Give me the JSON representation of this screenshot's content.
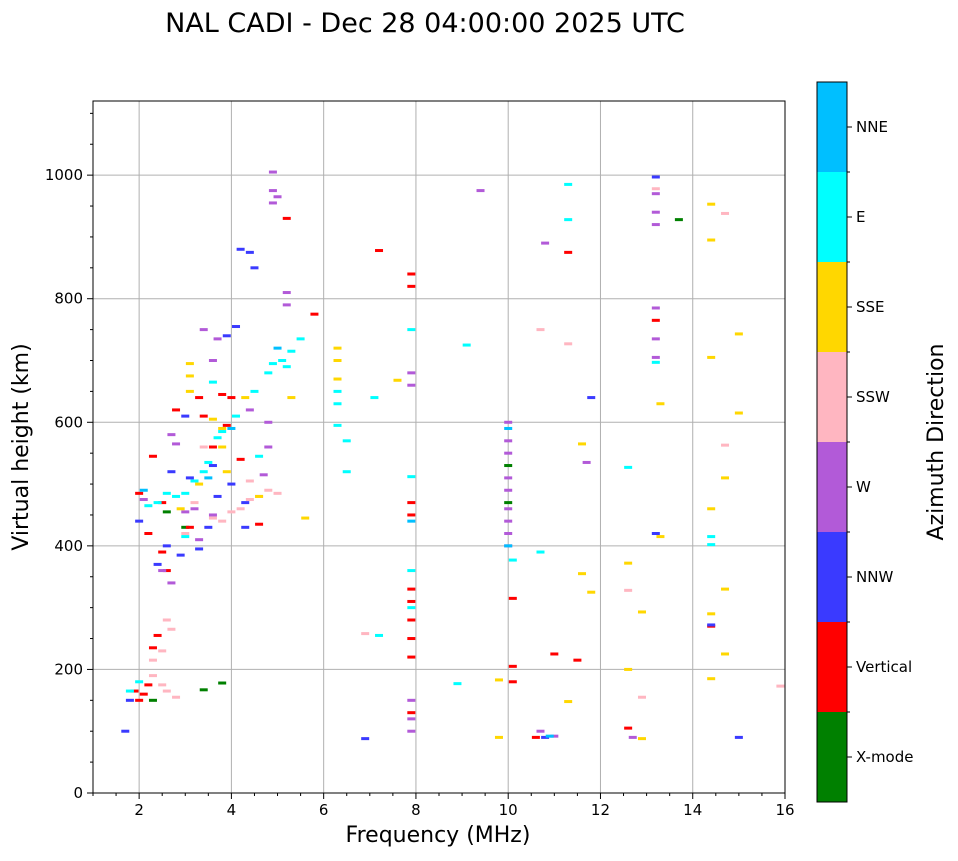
{
  "chart_data": {
    "type": "scatter",
    "title": "NAL CADI - Dec 28 04:00:00 2025 UTC",
    "xlabel": "Frequency (MHz)",
    "ylabel": "Virtual height (km)",
    "xlim": [
      1,
      16
    ],
    "ylim": [
      0,
      1120
    ],
    "xticks": [
      2,
      4,
      6,
      8,
      10,
      12,
      14,
      16
    ],
    "yticks": [
      0,
      200,
      400,
      600,
      800,
      1000
    ],
    "xtick_labels": [
      "2",
      "4",
      "6",
      "8",
      "10",
      "12",
      "14",
      "16"
    ],
    "ytick_labels": [
      "0",
      "200",
      "400",
      "600",
      "800",
      "1000"
    ],
    "grid": true,
    "colorbar": {
      "label": "Azimuth Direction",
      "categories": [
        "X-mode",
        "Vertical",
        "NNW",
        "W",
        "SSW",
        "SSE",
        "E",
        "NNE"
      ],
      "colors": [
        "#008000",
        "#ff0000",
        "#3a3aff",
        "#b25ad8",
        "#ffb6c1",
        "#ffd700",
        "#00ffff",
        "#00bfff"
      ]
    },
    "series": [
      {
        "name": "X-mode",
        "color": "#008000",
        "points": [
          [
            3.4,
            167
          ],
          [
            3.8,
            178
          ],
          [
            13.7,
            928
          ],
          [
            10.0,
            470
          ],
          [
            10.0,
            530
          ],
          [
            2.6,
            455
          ],
          [
            3.0,
            430
          ],
          [
            2.3,
            150
          ]
        ]
      },
      {
        "name": "Vertical",
        "color": "#ff0000",
        "points": [
          [
            2.0,
            150
          ],
          [
            2.1,
            160
          ],
          [
            2.2,
            175
          ],
          [
            2.3,
            235
          ],
          [
            2.4,
            255
          ],
          [
            2.0,
            485
          ],
          [
            2.2,
            420
          ],
          [
            2.3,
            545
          ],
          [
            2.5,
            390
          ],
          [
            2.8,
            620
          ],
          [
            3.1,
            430
          ],
          [
            3.4,
            610
          ],
          [
            3.6,
            560
          ],
          [
            3.8,
            645
          ],
          [
            4.0,
            640
          ],
          [
            4.2,
            540
          ],
          [
            4.6,
            435
          ],
          [
            5.8,
            775
          ],
          [
            5.2,
            930
          ],
          [
            7.2,
            878
          ],
          [
            7.9,
            820
          ],
          [
            7.9,
            840
          ],
          [
            7.9,
            330
          ],
          [
            7.9,
            310
          ],
          [
            7.9,
            280
          ],
          [
            7.9,
            250
          ],
          [
            7.9,
            220
          ],
          [
            7.9,
            470
          ],
          [
            7.9,
            450
          ],
          [
            7.9,
            130
          ],
          [
            10.1,
            315
          ],
          [
            10.1,
            205
          ],
          [
            10.1,
            180
          ],
          [
            11.3,
            875
          ],
          [
            11.0,
            225
          ],
          [
            11.5,
            215
          ],
          [
            10.6,
            90
          ],
          [
            12.6,
            105
          ],
          [
            13.2,
            765
          ],
          [
            14.4,
            270
          ],
          [
            1.9,
            165
          ],
          [
            2.5,
            470
          ],
          [
            3.3,
            640
          ],
          [
            3.9,
            595
          ],
          [
            2.6,
            360
          ]
        ]
      },
      {
        "name": "NNW",
        "color": "#3a3aff",
        "points": [
          [
            1.8,
            150
          ],
          [
            2.4,
            370
          ],
          [
            2.6,
            400
          ],
          [
            2.9,
            385
          ],
          [
            3.3,
            395
          ],
          [
            3.5,
            430
          ],
          [
            3.7,
            480
          ],
          [
            4.0,
            500
          ],
          [
            4.3,
            470
          ],
          [
            3.9,
            740
          ],
          [
            4.1,
            755
          ],
          [
            4.2,
            880
          ],
          [
            4.4,
            875
          ],
          [
            4.5,
            850
          ],
          [
            3.1,
            510
          ],
          [
            3.6,
            530
          ],
          [
            4.3,
            430
          ],
          [
            6.9,
            88
          ],
          [
            11.8,
            640
          ],
          [
            13.2,
            997
          ],
          [
            13.2,
            420
          ],
          [
            14.4,
            272
          ],
          [
            15.0,
            90
          ],
          [
            10.8,
            90
          ],
          [
            3.0,
            610
          ],
          [
            2.0,
            440
          ],
          [
            2.7,
            520
          ],
          [
            1.7,
            100
          ]
        ]
      },
      {
        "name": "W",
        "color": "#b25ad8",
        "points": [
          [
            4.9,
            1005
          ],
          [
            4.9,
            975
          ],
          [
            4.9,
            955
          ],
          [
            5.0,
            965
          ],
          [
            5.2,
            810
          ],
          [
            5.2,
            790
          ],
          [
            4.8,
            600
          ],
          [
            4.8,
            560
          ],
          [
            4.7,
            515
          ],
          [
            3.4,
            750
          ],
          [
            3.7,
            735
          ],
          [
            3.6,
            700
          ],
          [
            2.7,
            580
          ],
          [
            2.8,
            565
          ],
          [
            3.0,
            455
          ],
          [
            3.2,
            460
          ],
          [
            3.3,
            410
          ],
          [
            3.6,
            450
          ],
          [
            2.5,
            360
          ],
          [
            2.7,
            340
          ],
          [
            9.4,
            975
          ],
          [
            10.8,
            890
          ],
          [
            7.9,
            680
          ],
          [
            7.9,
            660
          ],
          [
            7.9,
            150
          ],
          [
            7.9,
            120
          ],
          [
            7.9,
            100
          ],
          [
            10.7,
            100
          ],
          [
            11.0,
            92
          ],
          [
            11.7,
            535
          ],
          [
            13.2,
            970
          ],
          [
            13.2,
            940
          ],
          [
            13.2,
            920
          ],
          [
            13.2,
            785
          ],
          [
            13.2,
            735
          ],
          [
            13.2,
            705
          ],
          [
            12.7,
            90
          ],
          [
            10.0,
            400
          ],
          [
            10.0,
            420
          ],
          [
            10.0,
            440
          ],
          [
            10.0,
            460
          ],
          [
            10.0,
            490
          ],
          [
            10.0,
            510
          ],
          [
            10.0,
            550
          ],
          [
            10.0,
            570
          ],
          [
            10.0,
            600
          ],
          [
            2.1,
            475
          ],
          [
            4.4,
            620
          ]
        ]
      },
      {
        "name": "SSW",
        "color": "#ffb6c1",
        "points": [
          [
            2.3,
            215
          ],
          [
            2.5,
            230
          ],
          [
            2.6,
            280
          ],
          [
            2.7,
            265
          ],
          [
            2.6,
            165
          ],
          [
            2.8,
            155
          ],
          [
            3.2,
            470
          ],
          [
            3.6,
            445
          ],
          [
            3.8,
            440
          ],
          [
            4.0,
            455
          ],
          [
            4.2,
            460
          ],
          [
            4.4,
            475
          ],
          [
            4.6,
            480
          ],
          [
            4.8,
            490
          ],
          [
            5.0,
            485
          ],
          [
            3.4,
            560
          ],
          [
            2.3,
            190
          ],
          [
            2.5,
            175
          ],
          [
            10.7,
            750
          ],
          [
            11.3,
            727
          ],
          [
            12.6,
            328
          ],
          [
            12.9,
            155
          ],
          [
            13.2,
            978
          ],
          [
            14.7,
            938
          ],
          [
            14.7,
            563
          ],
          [
            15.9,
            173
          ],
          [
            6.9,
            258
          ],
          [
            4.4,
            505
          ],
          [
            3.0,
            420
          ]
        ]
      },
      {
        "name": "SSE",
        "color": "#ffd700",
        "points": [
          [
            3.1,
            695
          ],
          [
            3.1,
            675
          ],
          [
            3.1,
            650
          ],
          [
            3.6,
            605
          ],
          [
            3.8,
            590
          ],
          [
            3.8,
            560
          ],
          [
            4.3,
            640
          ],
          [
            3.3,
            500
          ],
          [
            3.9,
            520
          ],
          [
            2.9,
            460
          ],
          [
            5.3,
            640
          ],
          [
            6.3,
            720
          ],
          [
            6.3,
            700
          ],
          [
            6.3,
            670
          ],
          [
            7.6,
            668
          ],
          [
            9.8,
            183
          ],
          [
            9.8,
            90
          ],
          [
            11.3,
            148
          ],
          [
            11.6,
            355
          ],
          [
            11.8,
            325
          ],
          [
            11.6,
            565
          ],
          [
            12.6,
            372
          ],
          [
            12.6,
            200
          ],
          [
            12.9,
            293
          ],
          [
            12.9,
            88
          ],
          [
            13.3,
            630
          ],
          [
            13.3,
            415
          ],
          [
            14.4,
            953
          ],
          [
            14.4,
            895
          ],
          [
            14.4,
            705
          ],
          [
            14.4,
            460
          ],
          [
            14.4,
            290
          ],
          [
            14.4,
            185
          ],
          [
            14.7,
            510
          ],
          [
            14.7,
            330
          ],
          [
            14.7,
            225
          ],
          [
            15.0,
            743
          ],
          [
            15.0,
            615
          ],
          [
            5.6,
            445
          ],
          [
            4.6,
            480
          ]
        ]
      },
      {
        "name": "E",
        "color": "#00ffff",
        "points": [
          [
            2.4,
            470
          ],
          [
            2.6,
            485
          ],
          [
            2.8,
            480
          ],
          [
            3.0,
            485
          ],
          [
            3.2,
            505
          ],
          [
            3.4,
            520
          ],
          [
            3.5,
            535
          ],
          [
            3.7,
            575
          ],
          [
            3.8,
            585
          ],
          [
            4.1,
            610
          ],
          [
            4.5,
            650
          ],
          [
            4.8,
            680
          ],
          [
            5.1,
            700
          ],
          [
            5.3,
            715
          ],
          [
            5.5,
            735
          ],
          [
            3.6,
            665
          ],
          [
            4.9,
            695
          ],
          [
            5.2,
            690
          ],
          [
            6.3,
            650
          ],
          [
            6.3,
            630
          ],
          [
            6.3,
            595
          ],
          [
            6.5,
            570
          ],
          [
            6.5,
            520
          ],
          [
            7.1,
            640
          ],
          [
            7.2,
            255
          ],
          [
            7.9,
            750
          ],
          [
            7.9,
            512
          ],
          [
            7.9,
            360
          ],
          [
            7.9,
            300
          ],
          [
            8.9,
            177
          ],
          [
            9.1,
            725
          ],
          [
            10.1,
            377
          ],
          [
            10.7,
            390
          ],
          [
            11.3,
            985
          ],
          [
            11.3,
            928
          ],
          [
            12.6,
            527
          ],
          [
            13.2,
            697
          ],
          [
            14.4,
            415
          ],
          [
            14.4,
            402
          ],
          [
            1.8,
            165
          ],
          [
            2.0,
            180
          ],
          [
            2.2,
            465
          ],
          [
            3.0,
            415
          ],
          [
            4.6,
            545
          ]
        ]
      },
      {
        "name": "NNE",
        "color": "#00bfff",
        "points": [
          [
            7.9,
            440
          ],
          [
            10.0,
            590
          ],
          [
            10.0,
            400
          ],
          [
            10.9,
            92
          ],
          [
            4.0,
            590
          ],
          [
            3.5,
            510
          ],
          [
            5.0,
            720
          ],
          [
            2.1,
            490
          ]
        ]
      }
    ]
  }
}
